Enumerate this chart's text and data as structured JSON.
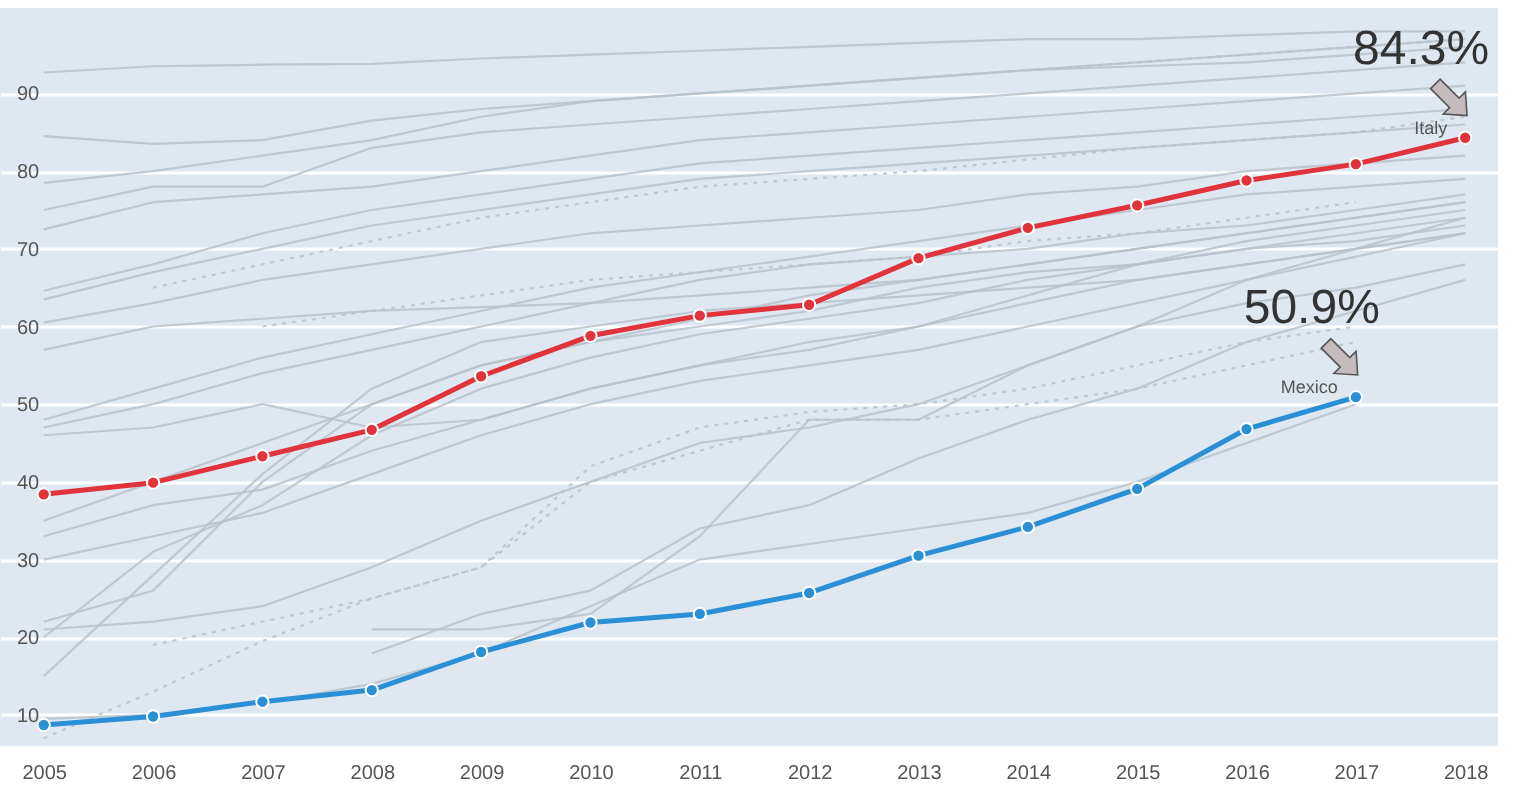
{
  "chart_data": {
    "type": "line",
    "x": [
      2005,
      2006,
      2007,
      2008,
      2009,
      2010,
      2011,
      2012,
      2013,
      2014,
      2015,
      2016,
      2017,
      2018
    ],
    "xlim": [
      2004.6,
      2018.3
    ],
    "xticks": [
      2005,
      2006,
      2007,
      2008,
      2009,
      2010,
      2011,
      2012,
      2013,
      2014,
      2015,
      2016,
      2017,
      2018
    ],
    "ylim": [
      6,
      101
    ],
    "yticks": [
      10,
      20,
      30,
      40,
      50,
      60,
      70,
      80,
      90
    ],
    "grid": "y",
    "line_style": "solid",
    "marker": "none",
    "annotations": [
      {
        "text": "84.3%",
        "x": 2018,
        "y": 84.3
      },
      {
        "text": "50.9%",
        "x": 2017,
        "y": 50.9
      }
    ],
    "series": [
      {
        "color": "#b8c2ca",
        "values": [
          92.7,
          93.5,
          93.7,
          93.8,
          94.5,
          95,
          95.5,
          96,
          96.5,
          97,
          97,
          97.5,
          98,
          98
        ]
      },
      {
        "color": "#b8c2ca",
        "values": [
          84.5,
          83.5,
          84,
          86.5,
          88,
          89,
          90,
          91,
          92,
          93,
          94,
          95,
          96,
          97
        ]
      },
      {
        "color": "#b8c2ca",
        "values": [
          78.5,
          80,
          82,
          84,
          87,
          89,
          90,
          91,
          92,
          93,
          93.5,
          94,
          95,
          96
        ]
      },
      {
        "color": "#b8c2ca",
        "values": [
          75,
          78,
          78,
          83,
          85,
          86,
          87,
          88,
          89,
          90,
          91,
          92,
          93,
          94
        ]
      },
      {
        "color": "#b8c2ca",
        "values": [
          72.5,
          76,
          77,
          78,
          80,
          82,
          84,
          85,
          86,
          87,
          88,
          89,
          90,
          91
        ]
      },
      {
        "color": "#b8c2ca",
        "values": [
          64.6,
          68,
          72,
          75,
          77,
          79,
          81,
          82,
          83,
          84,
          85,
          86,
          87,
          88
        ]
      },
      {
        "color": "#b8c2ca",
        "values": [
          63.5,
          67,
          70,
          73,
          75,
          77,
          79,
          80,
          81,
          82,
          83,
          84,
          85,
          86
        ]
      },
      {
        "color": "#b8c2ca",
        "line_style": "dotted",
        "values": [
          null,
          65,
          68,
          71,
          74,
          76,
          78,
          79,
          80,
          81.5,
          83,
          84,
          85,
          87
        ]
      },
      {
        "color": "#b8c2ca",
        "line_style": "dotted",
        "values": [
          null,
          null,
          null,
          null,
          null,
          null,
          null,
          null,
          null,
          93,
          94,
          95,
          96,
          97
        ]
      },
      {
        "color": "#b8c2ca",
        "values": [
          60.5,
          63,
          66,
          68,
          70,
          72,
          73,
          74,
          75,
          77,
          78,
          80,
          81,
          82
        ]
      },
      {
        "color": "#b8c2ca",
        "values": [
          57,
          60,
          61,
          62,
          62.5,
          63,
          64,
          65,
          66,
          68,
          70,
          72,
          74,
          76
        ]
      },
      {
        "color": "#b8c2ca",
        "line_style": "dotted",
        "values": [
          null,
          null,
          60,
          62,
          64,
          66,
          67,
          68,
          69,
          71,
          72,
          74,
          76,
          null
        ]
      },
      {
        "color": "#b8c2ca",
        "values": [
          48,
          52,
          56,
          59,
          62,
          65,
          67,
          69,
          71,
          73,
          75,
          77,
          78,
          79
        ]
      },
      {
        "color": "#b8c2ca",
        "values": [
          47,
          50,
          54,
          57,
          60,
          63,
          66,
          68,
          69,
          70,
          72,
          73,
          75,
          77
        ]
      },
      {
        "color": "#b8c2ca",
        "values": [
          46,
          47,
          50,
          47,
          48,
          52,
          55,
          57,
          60,
          64,
          68,
          71,
          73,
          75
        ]
      },
      {
        "color": "#b8c2ca",
        "values": [
          35,
          40,
          45,
          50,
          55,
          58,
          61,
          64,
          66,
          68,
          70,
          72,
          74,
          76
        ]
      },
      {
        "color": "#b8c2ca",
        "values": [
          33,
          37,
          39,
          44,
          48,
          52,
          55,
          58,
          60,
          63,
          66,
          68,
          70,
          72
        ]
      },
      {
        "color": "#b8c2ca",
        "values": [
          30,
          33,
          36,
          41,
          46,
          50,
          53,
          55,
          57,
          60,
          63,
          66,
          69,
          72
        ]
      },
      {
        "color": "#b8c2ca",
        "values": [
          22,
          26,
          40,
          50,
          55,
          58,
          60,
          62,
          65,
          67,
          68,
          70,
          71,
          73
        ]
      },
      {
        "color": "#b8c2ca",
        "values": [
          20,
          31,
          37,
          46,
          52,
          56,
          59,
          61,
          63,
          66,
          68,
          70,
          72,
          74
        ]
      },
      {
        "color": "#b8c2ca",
        "values": [
          21,
          22,
          24,
          29,
          35,
          40,
          45,
          47,
          50,
          55,
          60,
          66,
          70,
          74
        ]
      },
      {
        "color": "#b8c2ca",
        "values": [
          15,
          28,
          41,
          52,
          58,
          60,
          62,
          63,
          64,
          65,
          66,
          68,
          70,
          72
        ]
      },
      {
        "color": "#b8c2ca",
        "values": [
          null,
          null,
          null,
          17.9,
          23,
          26,
          34,
          37,
          43,
          48,
          52,
          58,
          62,
          66
        ]
      },
      {
        "color": "#b8c2ca",
        "values": [
          null,
          null,
          null,
          21,
          21,
          23,
          33,
          48,
          48,
          55,
          60,
          63,
          65,
          68
        ]
      },
      {
        "color": "#b8c2ca",
        "values": [
          9.5,
          10,
          11.5,
          14,
          18,
          24,
          30,
          32,
          34,
          36,
          40,
          45,
          50,
          null
        ]
      },
      {
        "color": "#b8c2ca",
        "line_style": "dotted",
        "values": [
          7,
          13,
          19.5,
          25,
          29,
          42,
          47,
          49,
          50,
          52,
          55,
          58,
          60,
          null
        ]
      },
      {
        "color": "#b8c2ca",
        "line_style": "dotted",
        "values": [
          null,
          19,
          22,
          25,
          29,
          40,
          44,
          48,
          48,
          50,
          52,
          55,
          58,
          null
        ]
      },
      {
        "name": "Italy",
        "color": "#e0333c",
        "marker": "circle",
        "values": [
          38.4,
          39.9,
          43.3,
          46.7,
          53.6,
          58.8,
          61.4,
          62.8,
          68.8,
          72.7,
          75.6,
          78.8,
          80.9,
          84.3
        ]
      },
      {
        "name": "Mexico",
        "color": "#2b8fd6",
        "marker": "circle",
        "values": [
          8.7,
          9.8,
          11.7,
          13.2,
          18.1,
          21.9,
          23.0,
          25.7,
          30.5,
          34.2,
          39.1,
          46.8,
          50.9,
          null
        ]
      }
    ]
  }
}
